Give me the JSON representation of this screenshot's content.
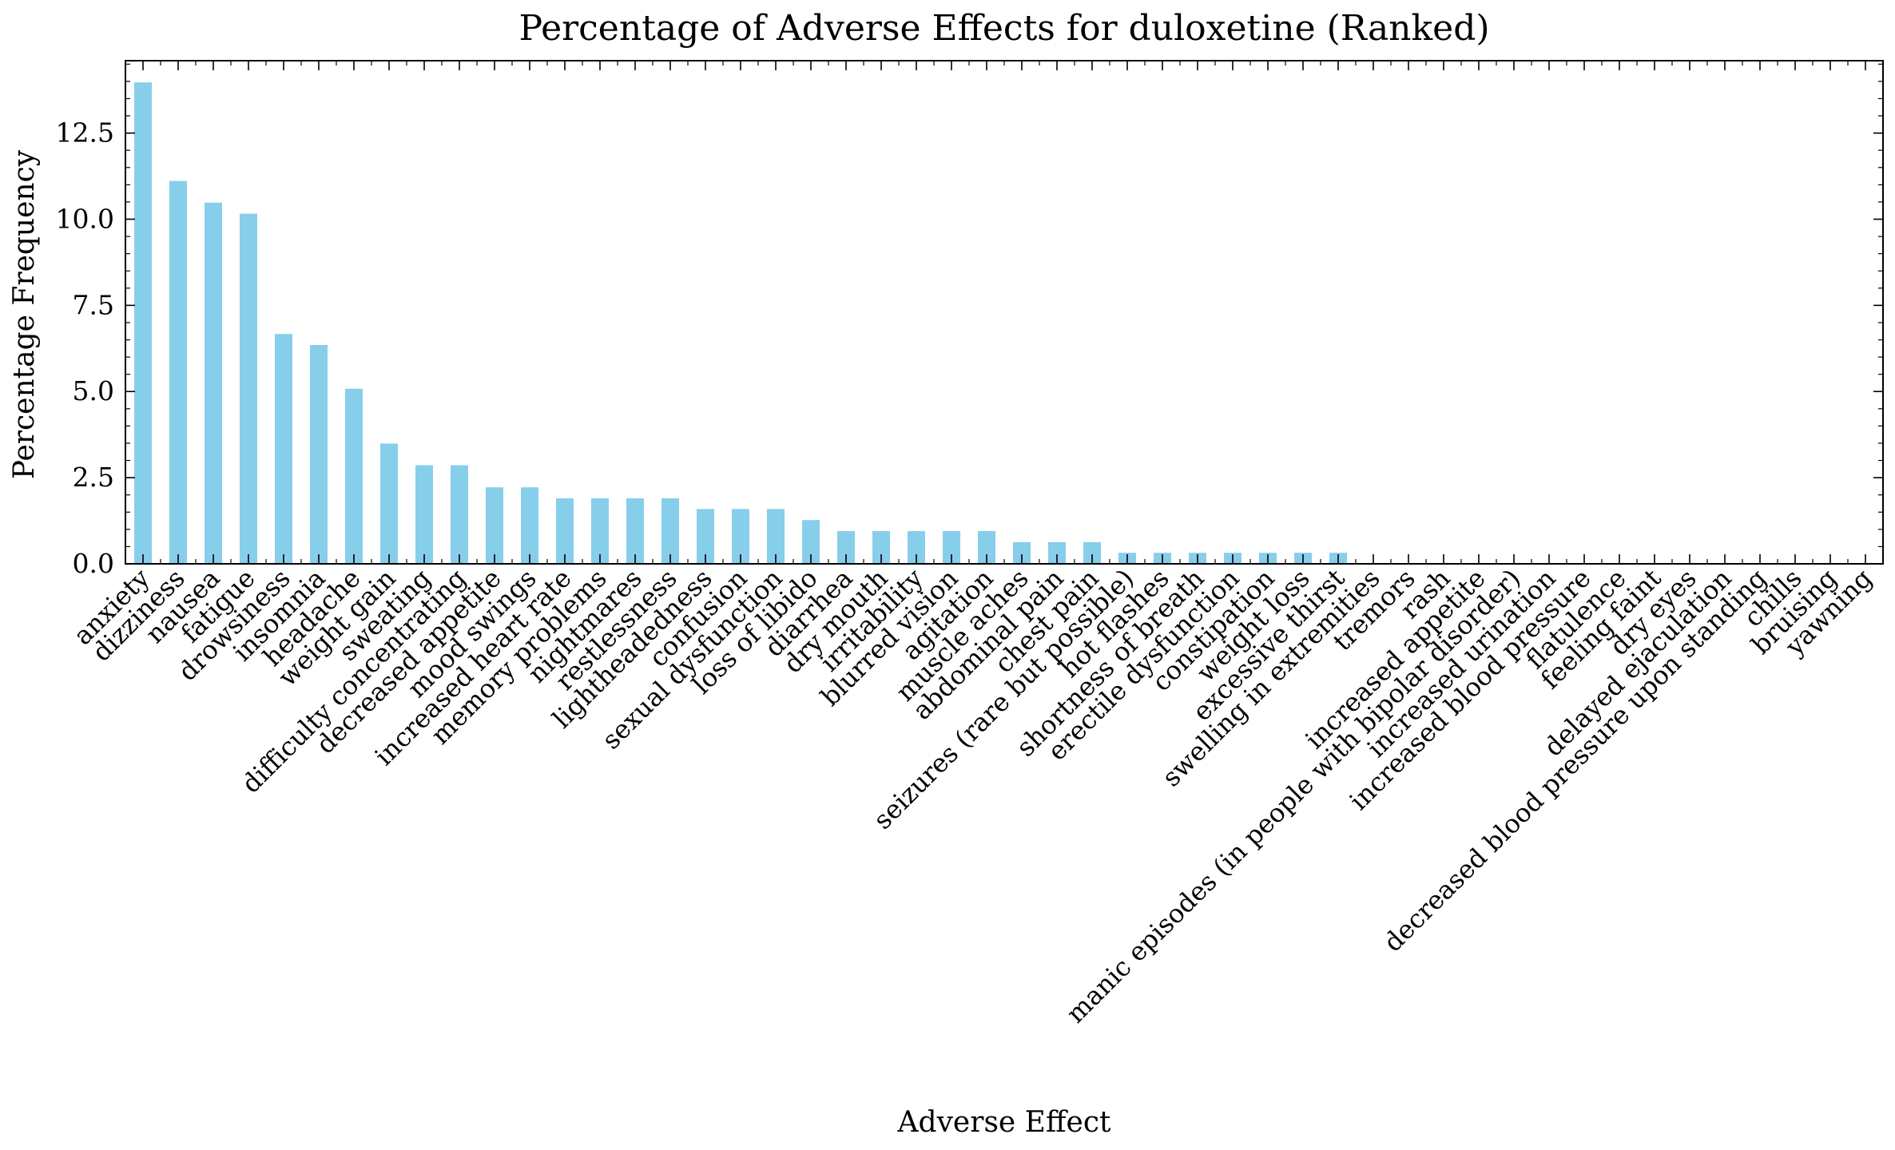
{
  "chart_data": {
    "type": "bar",
    "title": "Percentage of Adverse Effects for duloxetine (Ranked)",
    "xlabel": "Adverse Effect",
    "ylabel": "Percentage Frequency",
    "ylim": [
      0,
      14.6
    ],
    "yticks": [
      0.0,
      2.5,
      5.0,
      7.5,
      10.0,
      12.5
    ],
    "ytick_labels": [
      "0.0",
      "2.5",
      "5.0",
      "7.5",
      "10.0",
      "12.5"
    ],
    "grid": false,
    "bar_color": "#87ceeb",
    "categories": [
      "anxiety",
      "dizziness",
      "nausea",
      "fatigue",
      "drowsiness",
      "insomnia",
      "headache",
      "weight gain",
      "sweating",
      "difficulty concentrating",
      "decreased appetite",
      "mood swings",
      "increased heart rate",
      "memory problems",
      "nightmares",
      "restlessness",
      "lightheadedness",
      "confusion",
      "sexual dysfunction",
      "loss of libido",
      "diarrhea",
      "dry mouth",
      "irritability",
      "blurred vision",
      "agitation",
      "muscle aches",
      "abdominal pain",
      "chest pain",
      "seizures (rare but possible)",
      "hot flashes",
      "shortness of breath",
      "erectile dysfunction",
      "constipation",
      "weight loss",
      "excessive thirst",
      "swelling in extremities",
      "tremors",
      "rash",
      "increased appetite",
      "manic episodes (in people with bipolar disorder)",
      "increased urination",
      "increased blood pressure",
      "flatulence",
      "feeling faint",
      "dry eyes",
      "delayed ejaculation",
      "decreased blood pressure upon standing",
      "chills",
      "bruising",
      "yawning"
    ],
    "values": [
      13.97,
      11.11,
      10.48,
      10.16,
      6.67,
      6.35,
      5.08,
      3.49,
      2.86,
      2.86,
      2.22,
      2.22,
      1.9,
      1.9,
      1.9,
      1.9,
      1.59,
      1.59,
      1.59,
      1.27,
      0.95,
      0.95,
      0.95,
      0.95,
      0.95,
      0.63,
      0.63,
      0.63,
      0.32,
      0.32,
      0.32,
      0.32,
      0.32,
      0.32,
      0.32,
      0,
      0,
      0,
      0,
      0,
      0,
      0,
      0,
      0,
      0,
      0,
      0,
      0,
      0,
      0
    ]
  }
}
